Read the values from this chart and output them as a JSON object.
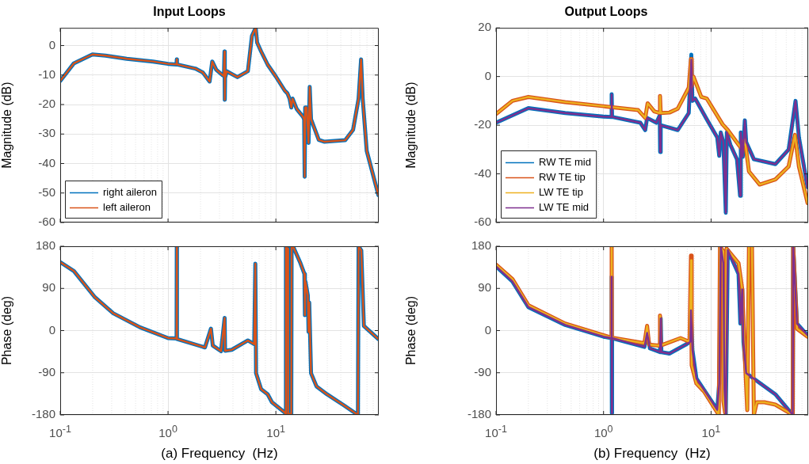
{
  "chart_data": [
    {
      "type": "line",
      "title": "Input Loops",
      "ylabel": "Magnitude (dB)",
      "log": "x",
      "grid": true,
      "legend": "bottom left",
      "tick_labels": "y",
      "marker": "none",
      "line_style": "solid",
      "xlim": [
        0.1,
        90
      ],
      "ylim": [
        -60,
        6
      ],
      "xticks": [
        {
          "value": 0.1,
          "label": null
        },
        {
          "value": 1,
          "label": null
        },
        {
          "value": 10,
          "label": null
        }
      ],
      "yticks": [
        -60,
        -50,
        -40,
        -30,
        -20,
        -10,
        0
      ],
      "series": [
        {
          "name": "right aileron",
          "color": "#0072bd",
          "x": [
            0.1,
            0.134,
            0.199,
            0.263,
            0.414,
            0.725,
            1.0,
            1.2,
            1.205,
            1.21,
            1.79,
            2.1,
            2.43,
            2.57,
            2.8,
            3.2,
            3.3,
            3.34,
            3.36,
            3.38,
            3.5,
            4.4,
            5.5,
            6.0,
            6.5,
            6.7,
            7.3,
            8.4,
            9.95,
            12.1,
            12.8,
            13.4,
            13.9,
            14.3,
            15.6,
            17.9,
            18.3,
            18.5,
            18.7,
            19.3,
            20.1,
            20.6,
            21.2,
            25,
            28,
            44,
            52,
            58.5,
            61.7,
            63.9,
            69.6,
            89.3
          ],
          "values": [
            -12,
            -6,
            -3,
            -3.4,
            -4.5,
            -5.4,
            -6.2,
            -6.4,
            -4.7,
            -6.4,
            -7.8,
            -9.1,
            -12.2,
            -5.4,
            -8.2,
            -10,
            -10.3,
            -2,
            -18.4,
            -11,
            -8.7,
            -10.7,
            -8.7,
            3.3,
            6,
            1,
            -2,
            -6.5,
            -10.4,
            -15.3,
            -16.2,
            -18,
            -21,
            -18,
            -21.5,
            -24.2,
            -25,
            -44.5,
            -21,
            -21,
            -33,
            -14,
            -25,
            -32,
            -32.6,
            -32.1,
            -28.6,
            -18,
            -4.7,
            -18,
            -35.7,
            -50.7
          ]
        },
        {
          "name": "left aileron",
          "color": "#d95319",
          "x": [
            0.1,
            0.134,
            0.199,
            0.263,
            0.414,
            0.725,
            1.0,
            1.2,
            1.205,
            1.21,
            1.79,
            2.1,
            2.43,
            2.57,
            2.8,
            3.2,
            3.3,
            3.34,
            3.36,
            3.38,
            3.5,
            4.4,
            5.5,
            6.0,
            6.5,
            6.7,
            7.3,
            8.4,
            9.95,
            12.1,
            12.8,
            13.4,
            13.9,
            14.3,
            15.6,
            17.9,
            18.3,
            18.5,
            18.7,
            19.3,
            20.1,
            20.6,
            21.2,
            25,
            28,
            44,
            52,
            58.5,
            61.7,
            63.9,
            69.6,
            89.3
          ],
          "values": [
            -12,
            -6,
            -3,
            -3.4,
            -4.5,
            -5.4,
            -6.2,
            -6.4,
            -4.7,
            -6.4,
            -7.8,
            -9.1,
            -12.2,
            -5.4,
            -8.2,
            -10,
            -10.3,
            -2,
            -18.4,
            -11,
            -8.7,
            -10.7,
            -8.7,
            3.3,
            6,
            1,
            -2,
            -6.5,
            -10.4,
            -15.3,
            -16.2,
            -18,
            -21,
            -18,
            -21.5,
            -24.2,
            -25,
            -44.5,
            -21,
            -21,
            -33,
            -14,
            -25,
            -32,
            -32.6,
            -32.1,
            -28.6,
            -18,
            -4.7,
            -18,
            -35.7,
            -50.7
          ]
        }
      ]
    },
    {
      "type": "line",
      "xlabel": "(a) Frequency  (Hz)",
      "ylabel": "Phase (deg)",
      "log": "x",
      "grid": true,
      "marker": "none",
      "line_style": "solid",
      "xlim": [
        0.1,
        90
      ],
      "ylim": [
        -180,
        180
      ],
      "xticks": [
        {
          "value": 0.1,
          "label": "10$^{-1}$"
        },
        {
          "value": 1,
          "label": "10$^{0}$"
        },
        {
          "value": 10,
          "label": "10$^{1}$"
        }
      ],
      "yticks": [
        -180,
        -90,
        0,
        90,
        180
      ],
      "series": [
        {
          "color": "#0072bd",
          "x": [
            0.1,
            0.134,
            0.21,
            0.31,
            0.55,
            1.0,
            1.2,
            1.205,
            1.21,
            2.2,
            2.5,
            2.6,
            3.1,
            3.35,
            3.38,
            3.9,
            5.5,
            6.3,
            6.45,
            6.55,
            7.3,
            8.4,
            9.2,
            12.1,
            12.3,
            12.4,
            12.9,
            13.0,
            13.9,
            14.0,
            14.6,
            16.9,
            18.4,
            18.6,
            18.8,
            19.8,
            20.1,
            20.4,
            21.2,
            23.8,
            29.8,
            41.8,
            57.7,
            58.5,
            62,
            65.5,
            89
          ],
          "values": [
            146,
            127,
            71,
            37,
            7,
            -16,
            -17,
            180,
            -18,
            -36,
            4,
            -32,
            -44,
            27,
            -43,
            -41,
            -21,
            -29,
            143,
            -91,
            -125,
            -136,
            -153,
            -175,
            -178,
            178,
            175,
            -178,
            -178,
            178,
            177,
            144,
            121,
            33,
            105,
            75,
            -3,
            60,
            -91,
            -119,
            -136,
            -158,
            -180,
            180,
            171,
            10,
            -18
          ]
        },
        {
          "color": "#d95319",
          "x": [
            0.1,
            0.134,
            0.21,
            0.31,
            0.55,
            1.0,
            1.2,
            1.205,
            1.21,
            2.2,
            2.5,
            2.6,
            3.1,
            3.35,
            3.38,
            3.9,
            5.5,
            6.3,
            6.45,
            6.55,
            7.3,
            8.4,
            9.2,
            12.1,
            12.3,
            12.4,
            12.9,
            13.0,
            13.9,
            14.0,
            14.6,
            16.9,
            18.4,
            18.6,
            18.8,
            19.8,
            20.1,
            20.4,
            21.2,
            23.8,
            29.8,
            41.8,
            57.7,
            58.5,
            62,
            65.5,
            89
          ],
          "values": [
            146,
            127,
            71,
            37,
            7,
            -16,
            -17,
            180,
            -18,
            -36,
            4,
            -32,
            -44,
            27,
            -43,
            -41,
            -21,
            -29,
            143,
            -91,
            -125,
            -136,
            -153,
            -175,
            -178,
            178,
            175,
            -178,
            -178,
            178,
            177,
            144,
            121,
            33,
            105,
            75,
            -3,
            60,
            -91,
            -119,
            -136,
            -158,
            -180,
            180,
            171,
            10,
            -18
          ]
        }
      ]
    },
    {
      "type": "line",
      "title": "Output Loops",
      "ylabel": "Magnitude (dB)",
      "log": "x",
      "grid": true,
      "legend": "bottom left",
      "tick_labels": "y",
      "marker": "none",
      "line_style": "solid",
      "xlim": [
        0.1,
        80
      ],
      "ylim": [
        -60,
        20
      ],
      "xticks": [
        {
          "value": 0.1,
          "label": null
        },
        {
          "value": 1,
          "label": null
        },
        {
          "value": 10,
          "label": null
        }
      ],
      "yticks": [
        -60,
        -40,
        -20,
        0,
        20
      ],
      "series": [
        {
          "name": "RW TE mid",
          "color": "#0072bd",
          "x": [
            0.1,
            0.2,
            0.44,
            1.0,
            1.18,
            1.19,
            1.2,
            2.2,
            2.44,
            2.54,
            3.1,
            3.33,
            3.36,
            3.4,
            4.9,
            6.2,
            6.55,
            6.7,
            7.1,
            9.1,
            11.4,
            11.9,
            12.3,
            13,
            13.7,
            14.0,
            15.1,
            17.4,
            18.6,
            18.9,
            19.7,
            20.6,
            21.2,
            25,
            39.6,
            52.6,
            61,
            65.6,
            78.9
          ],
          "values": [
            -19,
            -13,
            -15,
            -16.5,
            -16.6,
            -7.3,
            -16.6,
            -19,
            -22,
            -17,
            -19,
            -16,
            -31,
            -20,
            -22,
            -15,
            9,
            -10,
            -9,
            -17.5,
            -25,
            -32.6,
            -23,
            -27,
            -56,
            -23,
            -28,
            -34,
            -49,
            -23,
            -33,
            -18,
            -27,
            -34,
            -36,
            -30,
            -10,
            -25,
            -45.5
          ]
        },
        {
          "name": "RW TE tip",
          "color": "#d95319",
          "x": [
            0.1,
            0.142,
            0.2,
            0.44,
            1.0,
            2.1,
            2.44,
            2.57,
            2.96,
            3.3,
            3.35,
            3.4,
            4.1,
            4.9,
            6.2,
            6.5,
            6.6,
            6.85,
            8.1,
            9.1,
            12.8,
            14.3,
            18,
            19.5,
            20.6,
            22.5,
            28.3,
            39.6,
            52.6,
            60.3,
            65.6,
            78.9
          ],
          "values": [
            -15.4,
            -10,
            -8.4,
            -10.5,
            -12.2,
            -13.8,
            -17,
            -11,
            -14.3,
            -15,
            -8,
            -15,
            -14.8,
            -13.2,
            -4.6,
            7.2,
            -4,
            0,
            -8.4,
            -9,
            -19.7,
            -22,
            -28,
            -30,
            -26,
            -39,
            -44.4,
            -42.3,
            -37,
            -24,
            -37,
            -52
          ]
        },
        {
          "name": "LW TE tip",
          "color": "#edb120",
          "x": [
            0.1,
            0.142,
            0.2,
            0.44,
            1.0,
            2.1,
            2.44,
            2.57,
            2.96,
            3.3,
            3.35,
            3.4,
            4.1,
            4.9,
            6.2,
            6.5,
            6.6,
            6.85,
            8.1,
            9.1,
            12.8,
            14.3,
            18,
            19.5,
            20.6,
            22.5,
            28.3,
            39.6,
            52.6,
            60.3,
            65.6,
            78.9
          ],
          "values": [
            -15.4,
            -10,
            -8.4,
            -10.5,
            -12.2,
            -13.8,
            -17,
            -11,
            -14.3,
            -15,
            -8,
            -15,
            -14.8,
            -13.2,
            -4.6,
            7.2,
            -4,
            0,
            -8.4,
            -9,
            -19.7,
            -22,
            -28,
            -30,
            -26,
            -39,
            -44.4,
            -42.3,
            -37,
            -24,
            -37,
            -52
          ]
        },
        {
          "name": "LW TE mid",
          "color": "#7e2f8e",
          "x": [
            0.1,
            0.2,
            0.44,
            1.0,
            1.18,
            1.19,
            1.2,
            2.2,
            2.44,
            2.54,
            3.1,
            3.33,
            3.36,
            3.4,
            4.9,
            6.2,
            6.55,
            6.7,
            7.1,
            9.1,
            11.4,
            11.9,
            12.3,
            13,
            13.7,
            14.0,
            15.1,
            17.4,
            18.6,
            18.9,
            19.7,
            20.6,
            21.2,
            25,
            39.6,
            52.6,
            61,
            65.6,
            78.9
          ],
          "values": [
            -19,
            -13,
            -15,
            -16.5,
            -16.6,
            -7.3,
            -16.6,
            -19,
            -22,
            -17,
            -19,
            -16,
            -31,
            -20,
            -22,
            -15,
            7,
            -10,
            -9,
            -17.5,
            -25,
            -32.6,
            -23,
            -27,
            -56,
            -23,
            -28,
            -34,
            -49,
            -23,
            -33,
            -18,
            -27,
            -34,
            -36,
            -30,
            -10,
            -25,
            -45.5
          ]
        }
      ]
    },
    {
      "type": "line",
      "xlabel": "(b) Frequency  (Hz)",
      "ylabel": "Phase (deg)",
      "log": "x",
      "grid": true,
      "marker": "none",
      "line_style": "solid",
      "xlim": [
        0.1,
        80
      ],
      "ylim": [
        -180,
        180
      ],
      "xticks": [
        {
          "value": 0.1,
          "label": "10$^{-1}$"
        },
        {
          "value": 1,
          "label": "10$^{0}$"
        },
        {
          "value": 10,
          "label": "10$^{1}$"
        }
      ],
      "yticks": [
        -180,
        -90,
        0,
        90,
        180
      ],
      "series": [
        {
          "color": "#0072bd",
          "x": [
            0.1,
            0.142,
            0.2,
            0.44,
            1.0,
            1.185,
            1.19,
            1.195,
            1.2,
            2.4,
            2.54,
            2.7,
            3.35,
            3.4,
            3.45,
            4.1,
            5.8,
            6.4,
            6.5,
            6.7,
            7.3,
            11.4,
            11.9,
            12.3,
            13,
            13.3,
            13.7,
            14.3,
            18,
            18.7,
            19.5,
            20,
            21.2,
            39.6,
            57.5,
            58,
            62.9,
            78.9
          ],
          "values": [
            137,
            105,
            50,
            12,
            -13,
            -16,
            115,
            -176,
            -16,
            -35,
            -5,
            -38,
            -46,
            26,
            -46,
            -49,
            -30,
            -24,
            43,
            -41,
            -102,
            -169,
            -113,
            180,
            144,
            -125,
            -180,
            172,
            121,
            15,
            88,
            -24,
            -91,
            -136,
            -180,
            180,
            15,
            -10
          ]
        },
        {
          "color": "#d95319",
          "x": [
            0.1,
            0.142,
            0.2,
            0.44,
            1.0,
            1.185,
            1.19,
            1.195,
            2.4,
            2.54,
            2.65,
            3.3,
            3.35,
            3.4,
            5.2,
            6.3,
            6.5,
            6.6,
            7.3,
            8.6,
            11.8,
            12.1,
            12.9,
            13.0,
            13.5,
            13.9,
            18,
            19.5,
            20.6,
            21.7,
            22.5,
            24,
            25,
            26.6,
            31.3,
            39.6,
            57.5,
            58,
            62.9,
            78.9
          ],
          "values": [
            141,
            110,
            54,
            15,
            -10,
            -15,
            180,
            -15,
            -27,
            10,
            -30,
            -32,
            32,
            -32,
            -16,
            -24,
            160,
            -74,
            -113,
            -130,
            -180,
            180,
            170,
            -150,
            -175,
            175,
            144,
            88,
            -58,
            -170,
            180,
            180,
            -180,
            -153,
            -153,
            -158,
            -180,
            180,
            4,
            -13
          ]
        },
        {
          "color": "#edb120",
          "x": [
            0.1,
            0.142,
            0.2,
            0.44,
            1.0,
            1.185,
            1.19,
            1.195,
            2.4,
            2.54,
            2.65,
            3.3,
            3.35,
            3.4,
            5.2,
            6.3,
            6.5,
            6.6,
            7.3,
            8.6,
            11.8,
            12.1,
            12.9,
            13.0,
            13.5,
            13.9,
            18,
            19.5,
            20.6,
            21.7,
            22.5,
            24,
            25,
            26.6,
            31.3,
            39.6,
            57.5,
            58,
            62.9,
            78.9
          ],
          "values": [
            141,
            110,
            54,
            15,
            -10,
            -15,
            180,
            -15,
            -27,
            10,
            -30,
            -32,
            32,
            -32,
            -16,
            -24,
            150,
            -74,
            -113,
            -130,
            -180,
            180,
            170,
            -150,
            -175,
            175,
            144,
            88,
            -58,
            -170,
            180,
            180,
            -180,
            -153,
            -153,
            -158,
            -180,
            180,
            4,
            -13
          ]
        },
        {
          "color": "#7e2f8e",
          "x": [
            0.1,
            0.142,
            0.2,
            0.44,
            1.0,
            1.185,
            1.19,
            1.195,
            1.2,
            2.4,
            2.54,
            2.7,
            3.35,
            3.4,
            3.45,
            4.1,
            5.8,
            6.4,
            6.5,
            6.7,
            7.3,
            11.4,
            11.9,
            12.3,
            13,
            13.3,
            13.7,
            14.3,
            18,
            18.7,
            19.5,
            20,
            21.2,
            39.6,
            57.5,
            58,
            62.9,
            78.9
          ],
          "values": [
            137,
            105,
            50,
            12,
            -13,
            -16,
            115,
            -176,
            -16,
            -35,
            -5,
            -38,
            -46,
            26,
            -46,
            -49,
            -30,
            -24,
            43,
            -41,
            -102,
            -169,
            -113,
            180,
            144,
            -125,
            -180,
            172,
            121,
            15,
            88,
            -24,
            -91,
            -136,
            -180,
            180,
            15,
            -10
          ]
        }
      ]
    }
  ]
}
